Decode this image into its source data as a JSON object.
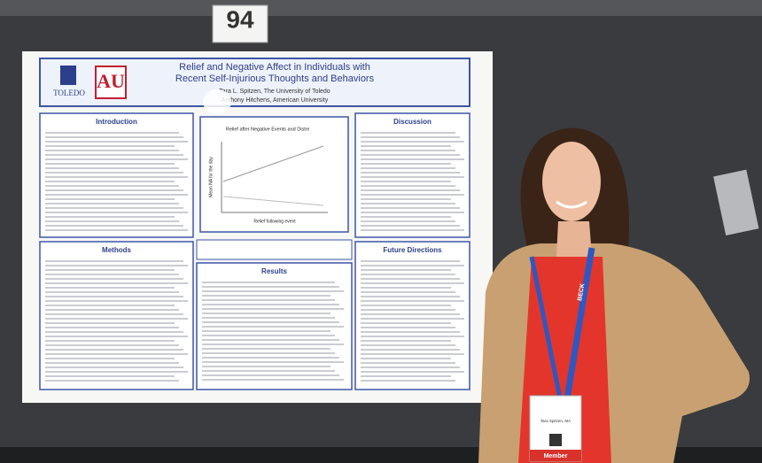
{
  "board": {
    "number": "94"
  },
  "poster": {
    "title": [
      "Relief and Negative Affect in Individuals with",
      "Recent Self-Injurious Thoughts and Behaviors"
    ],
    "authors": [
      "Tara L. Spitzen, The University of Toledo",
      "Anthony Hitchens, American University"
    ],
    "logo": "TOLEDO",
    "sections": [
      {
        "heading": "Introduction"
      },
      {
        "heading": "Discussion"
      },
      {
        "heading": "Methods"
      },
      {
        "heading": "Results"
      },
      {
        "heading": "Future Directions"
      }
    ],
    "figure": {
      "title": "Relief after Negative Events and Distress",
      "x_label": "Relief following event",
      "y_label": "Mean NA for the day"
    }
  },
  "lanyard": "BECK",
  "badge": {
    "name": "Tara Spitzen, MA",
    "role": "Member"
  }
}
